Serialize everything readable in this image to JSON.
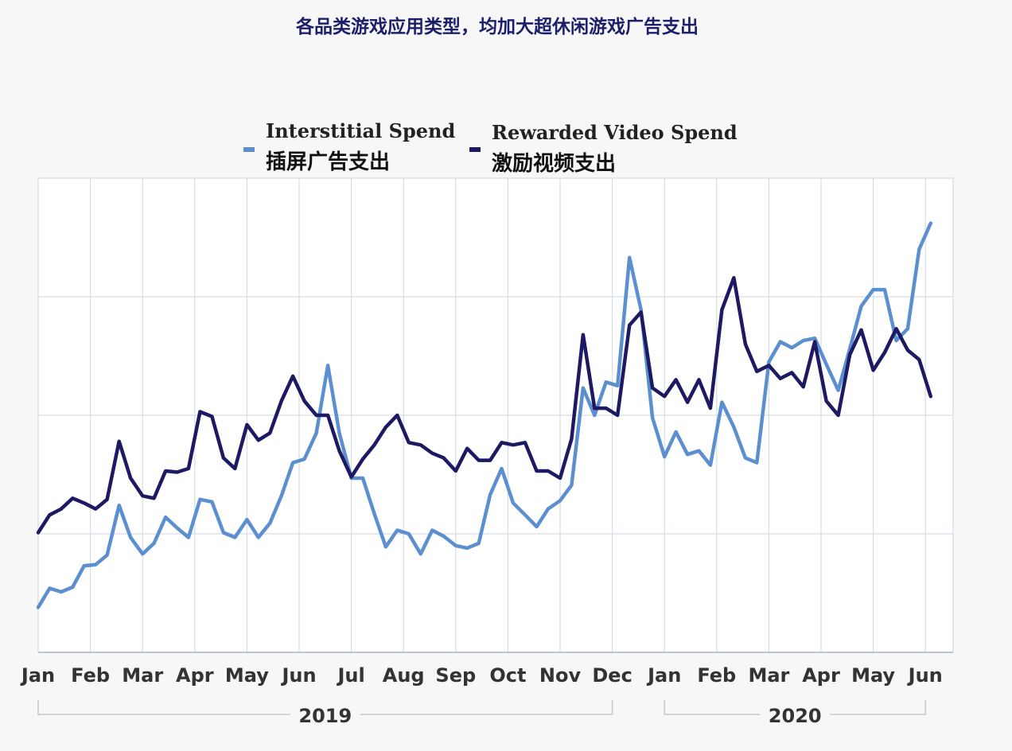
{
  "chart_data": {
    "type": "line",
    "title": "各品类游戏应用类型，均加大超休闲游戏广告支出",
    "xlabel": "",
    "ylabel": "",
    "grid": true,
    "legend_position": "top-center",
    "x_labels": [
      "Jan",
      "Feb",
      "Mar",
      "Apr",
      "May",
      "Jun",
      "Jul",
      "Aug",
      "Sep",
      "Oct",
      "Nov",
      "Dec",
      "Jan",
      "Feb",
      "Mar",
      "Apr",
      "May",
      "Jun"
    ],
    "year_groups": [
      {
        "label": "2019",
        "months": [
          "Jan",
          "Feb",
          "Mar",
          "Apr",
          "May",
          "Jun",
          "Jul",
          "Aug",
          "Sep",
          "Oct",
          "Nov",
          "Dec"
        ]
      },
      {
        "label": "2020",
        "months": [
          "Jan",
          "Feb",
          "Mar",
          "Apr",
          "May",
          "Jun"
        ]
      }
    ],
    "x_range": [
      0,
      17.6
    ],
    "ylim": [
      0,
      4
    ],
    "series": [
      {
        "name": "Interstitial Spend",
        "name_zh": "插屏广告支出",
        "color": "#5b8fd0",
        "points": [
          [
            0,
            0.38
          ],
          [
            0.22,
            0.54
          ],
          [
            0.44,
            0.51
          ],
          [
            0.66,
            0.55
          ],
          [
            0.88,
            0.73
          ],
          [
            1.1,
            0.74
          ],
          [
            1.32,
            0.82
          ],
          [
            1.55,
            1.24
          ],
          [
            1.77,
            0.97
          ],
          [
            2.0,
            0.83
          ],
          [
            2.22,
            0.92
          ],
          [
            2.44,
            1.14
          ],
          [
            2.66,
            1.05
          ],
          [
            2.88,
            0.97
          ],
          [
            3.1,
            1.29
          ],
          [
            3.33,
            1.27
          ],
          [
            3.55,
            1.01
          ],
          [
            3.77,
            0.97
          ],
          [
            4.0,
            1.12
          ],
          [
            4.22,
            0.97
          ],
          [
            4.44,
            1.09
          ],
          [
            4.66,
            1.32
          ],
          [
            4.88,
            1.6
          ],
          [
            5.1,
            1.63
          ],
          [
            5.33,
            1.85
          ],
          [
            5.55,
            2.42
          ],
          [
            5.77,
            1.85
          ],
          [
            6.0,
            1.47
          ],
          [
            6.22,
            1.47
          ],
          [
            6.44,
            1.17
          ],
          [
            6.66,
            0.89
          ],
          [
            6.88,
            1.03
          ],
          [
            7.1,
            1.0
          ],
          [
            7.33,
            0.83
          ],
          [
            7.55,
            1.03
          ],
          [
            7.77,
            0.98
          ],
          [
            8.0,
            0.9
          ],
          [
            8.22,
            0.88
          ],
          [
            8.44,
            0.92
          ],
          [
            8.66,
            1.33
          ],
          [
            8.88,
            1.55
          ],
          [
            9.1,
            1.26
          ],
          [
            9.33,
            1.16
          ],
          [
            9.55,
            1.06
          ],
          [
            9.77,
            1.21
          ],
          [
            10.0,
            1.28
          ],
          [
            10.22,
            1.41
          ],
          [
            10.44,
            2.23
          ],
          [
            10.66,
            2.0
          ],
          [
            10.88,
            2.28
          ],
          [
            11.1,
            2.25
          ],
          [
            11.33,
            3.33
          ],
          [
            11.55,
            2.89
          ],
          [
            11.77,
            1.98
          ],
          [
            12.0,
            1.65
          ],
          [
            12.22,
            1.86
          ],
          [
            12.44,
            1.67
          ],
          [
            12.66,
            1.7
          ],
          [
            12.88,
            1.58
          ],
          [
            13.1,
            2.11
          ],
          [
            13.33,
            1.9
          ],
          [
            13.55,
            1.64
          ],
          [
            13.77,
            1.6
          ],
          [
            14.0,
            2.45
          ],
          [
            14.22,
            2.62
          ],
          [
            14.44,
            2.57
          ],
          [
            14.66,
            2.63
          ],
          [
            14.88,
            2.65
          ],
          [
            15.1,
            2.43
          ],
          [
            15.33,
            2.21
          ],
          [
            15.55,
            2.56
          ],
          [
            15.77,
            2.92
          ],
          [
            16.0,
            3.06
          ],
          [
            16.22,
            3.06
          ],
          [
            16.44,
            2.63
          ],
          [
            16.66,
            2.73
          ],
          [
            16.88,
            3.4
          ],
          [
            17.1,
            3.62
          ]
        ]
      },
      {
        "name": "Rewarded Video Spend",
        "name_zh": "激励视频支出",
        "color": "#1d1a63",
        "points": [
          [
            0,
            1.01
          ],
          [
            0.22,
            1.16
          ],
          [
            0.44,
            1.21
          ],
          [
            0.66,
            1.3
          ],
          [
            0.88,
            1.26
          ],
          [
            1.1,
            1.21
          ],
          [
            1.32,
            1.29
          ],
          [
            1.55,
            1.78
          ],
          [
            1.77,
            1.47
          ],
          [
            2.0,
            1.32
          ],
          [
            2.22,
            1.3
          ],
          [
            2.44,
            1.53
          ],
          [
            2.66,
            1.52
          ],
          [
            2.88,
            1.55
          ],
          [
            3.1,
            2.03
          ],
          [
            3.33,
            1.99
          ],
          [
            3.55,
            1.64
          ],
          [
            3.77,
            1.55
          ],
          [
            4.0,
            1.92
          ],
          [
            4.22,
            1.79
          ],
          [
            4.44,
            1.85
          ],
          [
            4.66,
            2.12
          ],
          [
            4.88,
            2.33
          ],
          [
            5.1,
            2.12
          ],
          [
            5.33,
            2.0
          ],
          [
            5.55,
            2.0
          ],
          [
            5.77,
            1.7
          ],
          [
            6.0,
            1.48
          ],
          [
            6.22,
            1.63
          ],
          [
            6.44,
            1.75
          ],
          [
            6.66,
            1.9
          ],
          [
            6.88,
            2.0
          ],
          [
            7.1,
            1.77
          ],
          [
            7.33,
            1.75
          ],
          [
            7.55,
            1.68
          ],
          [
            7.77,
            1.64
          ],
          [
            8.0,
            1.53
          ],
          [
            8.22,
            1.72
          ],
          [
            8.44,
            1.62
          ],
          [
            8.66,
            1.62
          ],
          [
            8.88,
            1.77
          ],
          [
            9.1,
            1.75
          ],
          [
            9.33,
            1.77
          ],
          [
            9.55,
            1.53
          ],
          [
            9.77,
            1.53
          ],
          [
            10.0,
            1.47
          ],
          [
            10.22,
            1.8
          ],
          [
            10.44,
            2.68
          ],
          [
            10.66,
            2.06
          ],
          [
            10.88,
            2.06
          ],
          [
            11.1,
            2.0
          ],
          [
            11.33,
            2.76
          ],
          [
            11.55,
            2.87
          ],
          [
            11.77,
            2.23
          ],
          [
            12.0,
            2.16
          ],
          [
            12.22,
            2.3
          ],
          [
            12.44,
            2.11
          ],
          [
            12.66,
            2.3
          ],
          [
            12.88,
            2.06
          ],
          [
            13.1,
            2.89
          ],
          [
            13.33,
            3.16
          ],
          [
            13.55,
            2.6
          ],
          [
            13.77,
            2.37
          ],
          [
            14.0,
            2.42
          ],
          [
            14.22,
            2.31
          ],
          [
            14.44,
            2.36
          ],
          [
            14.66,
            2.24
          ],
          [
            14.88,
            2.62
          ],
          [
            15.1,
            2.12
          ],
          [
            15.33,
            2.0
          ],
          [
            15.55,
            2.51
          ],
          [
            15.77,
            2.72
          ],
          [
            16.0,
            2.38
          ],
          [
            16.22,
            2.53
          ],
          [
            16.44,
            2.73
          ],
          [
            16.66,
            2.55
          ],
          [
            16.88,
            2.47
          ],
          [
            17.1,
            2.16
          ]
        ]
      }
    ]
  }
}
